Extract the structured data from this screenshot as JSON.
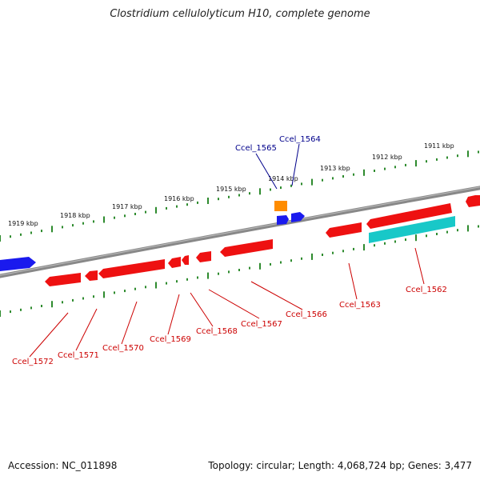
{
  "title": "Clostridium cellulolyticum H10, complete genome",
  "footer": {
    "accession": "Accession: NC_011898",
    "summary": "Topology: circular; Length: 4,068,724 bp; Genes: 3,477"
  },
  "colors": {
    "backbone": "#888888",
    "tick": "#2e8b2e",
    "forward_gene": "#1a1aee",
    "reverse_gene": "#ee1111",
    "rna_gene": "#18c8c8",
    "other_gene": "#ff8c00",
    "label_forward": "#00008b",
    "label_reverse": "#cc0000"
  },
  "scale_labels": [
    "1919 kbp",
    "1918 kbp",
    "1917 kbp",
    "1916 kbp",
    "1915 kbp",
    "1914 kbp",
    "1913 kbp",
    "1912 kbp",
    "1911 kbp"
  ],
  "gene_labels_forward": [
    "Ccel_1565",
    "Ccel_1564"
  ],
  "gene_labels_reverse": [
    "Ccel_1572",
    "Ccel_1571",
    "Ccel_1570",
    "Ccel_1569",
    "Ccel_1568",
    "Ccel_1567",
    "Ccel_1566",
    "Ccel_1563",
    "Ccel_1562"
  ]
}
